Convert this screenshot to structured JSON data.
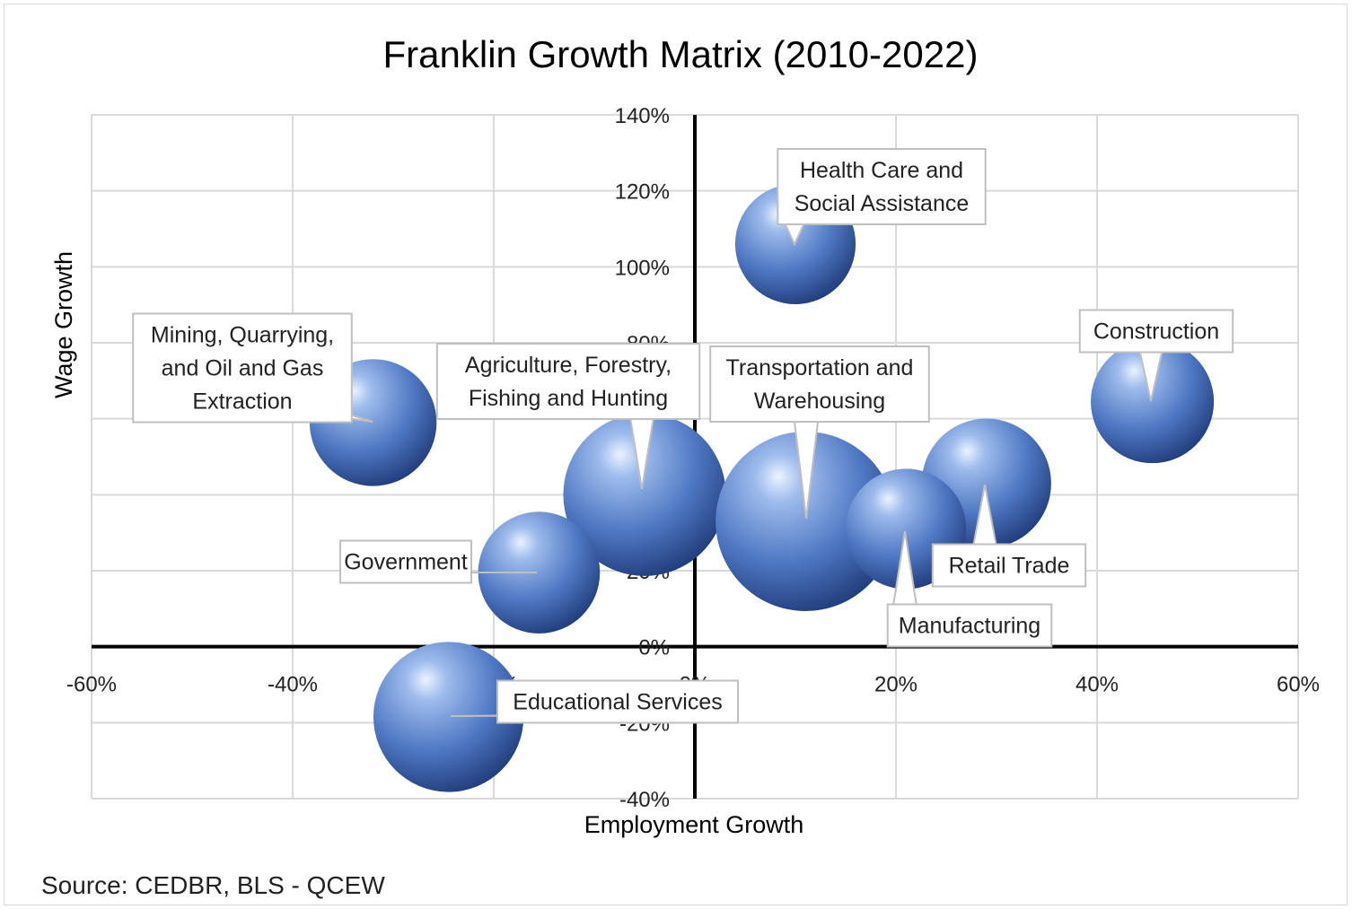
{
  "chart_data": {
    "type": "bubble",
    "title": "Franklin Growth Matrix (2010-2022)",
    "xlabel": "Employment Growth",
    "ylabel": "Wage Growth",
    "xlim": [
      -0.6,
      0.6
    ],
    "ylim": [
      -0.4,
      1.4
    ],
    "x_ticks": [
      -0.6,
      -0.4,
      -0.2,
      0,
      0.2,
      0.4,
      0.6
    ],
    "y_ticks": [
      -0.4,
      -0.2,
      0,
      0.2,
      0.4,
      0.6,
      0.8,
      1.0,
      1.2,
      1.4
    ],
    "tick_format": "percent",
    "grid": true,
    "legend": "none",
    "bubble_color": "#5b86cf",
    "points": [
      {
        "label": [
          "Health Care and",
          "Social Assistance"
        ],
        "x": 0.1,
        "y": 1.06,
        "size": 45
      },
      {
        "label": [
          "Construction"
        ],
        "x": 0.455,
        "y": 0.645,
        "size": 47
      },
      {
        "label": [
          "Mining, Quarrying,",
          "and Oil and Gas",
          "Extraction"
        ],
        "x": -0.32,
        "y": 0.59,
        "size": 50
      },
      {
        "label": [
          "Agriculture, Forestry,",
          "Fishing and Hunting"
        ],
        "x": -0.05,
        "y": 0.4,
        "size": 82
      },
      {
        "label": [
          "Transportation and",
          "Warehousing"
        ],
        "x": 0.11,
        "y": 0.33,
        "size": 100
      },
      {
        "label": [
          "Retail Trade"
        ],
        "x": 0.29,
        "y": 0.43,
        "size": 52
      },
      {
        "label": [
          "Manufacturing"
        ],
        "x": 0.21,
        "y": 0.31,
        "size": 45
      },
      {
        "label": [
          "Government"
        ],
        "x": -0.155,
        "y": 0.195,
        "size": 46
      },
      {
        "label": [
          "Educational Services"
        ],
        "x": -0.245,
        "y": -0.185,
        "size": 70
      }
    ]
  },
  "source_note": "Source: CEDBR, BLS - QCEW"
}
